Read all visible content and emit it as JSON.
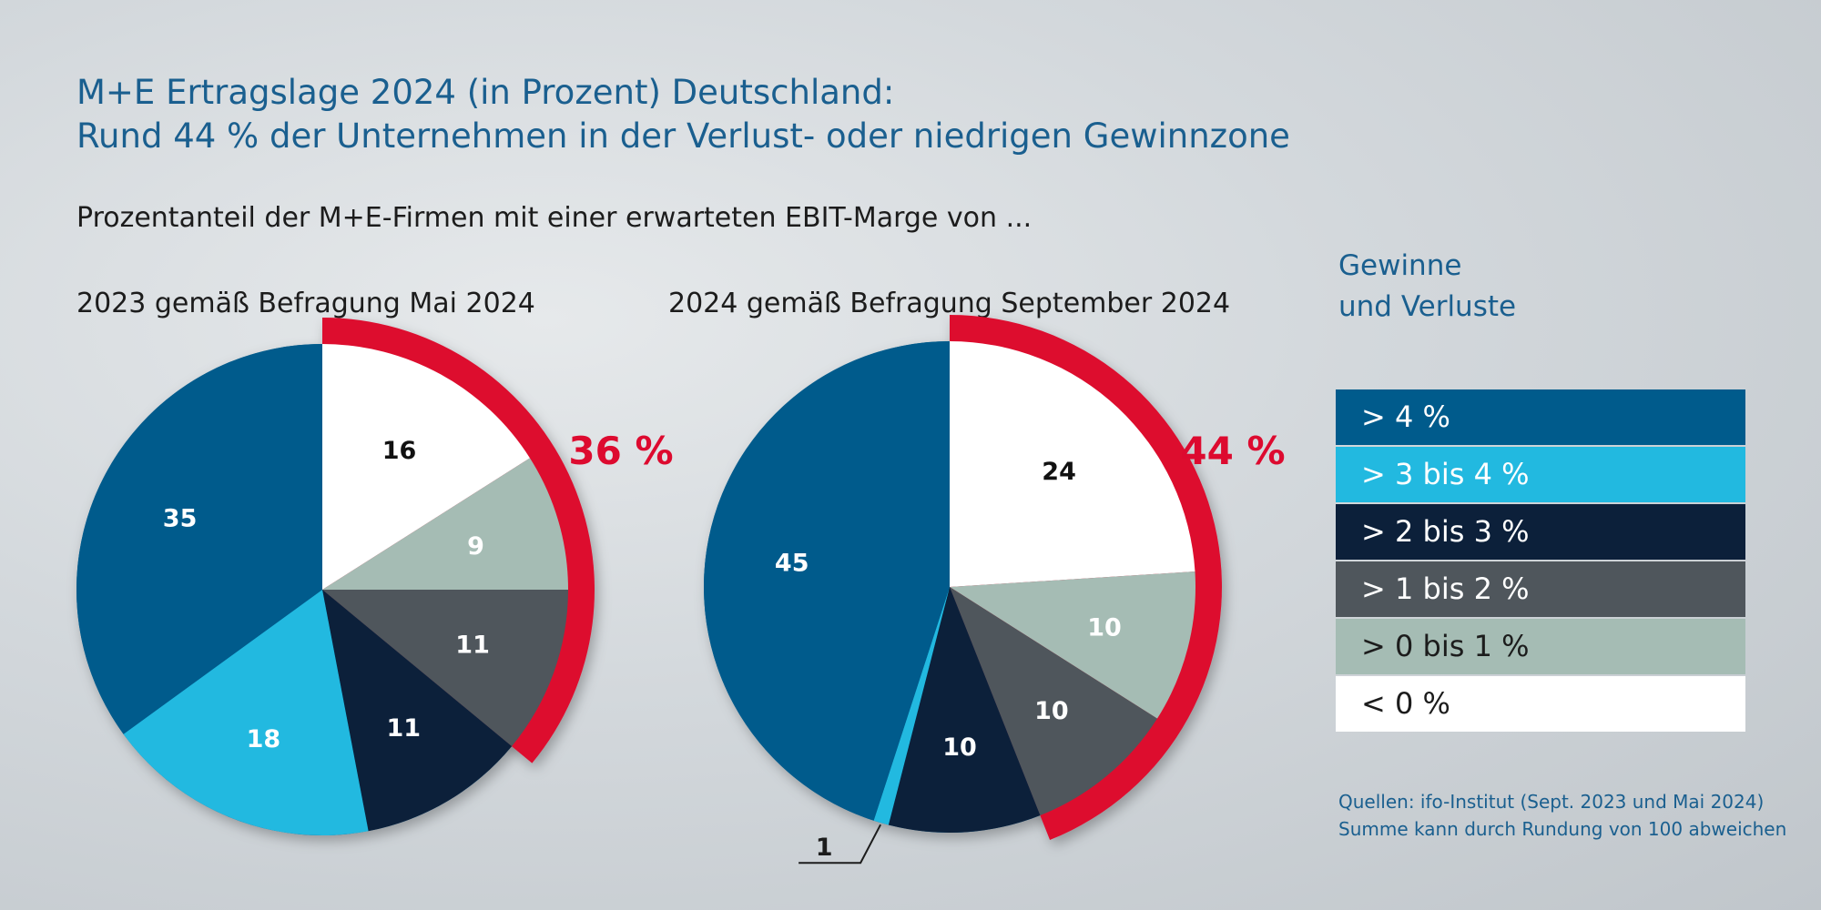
{
  "header": {
    "title_line1": "M+E Ertragslage 2024 (in Prozent) Deutschland:",
    "title_line2": "Rund 44 % der Unternehmen in der Verlust- oder niedrigen Gewinnzone",
    "subtitle": "Prozentanteil der M+E-Firmen mit einer erwarteten EBIT-Marge von ..."
  },
  "colors": {
    "gt4": "#005b8c",
    "3to4": "#22b9e0",
    "2to3": "#0c203a",
    "1to2": "#4f565c",
    "0to1": "#a5bcb4",
    "lt0": "#ffffff",
    "highlight": "#dd0a2f"
  },
  "legend": {
    "title_line1": "Gewinne",
    "title_line2": "und Verluste",
    "items": [
      {
        "label": "> 4 %",
        "color": "#005b8c",
        "text_color": "#ffffff"
      },
      {
        "label": "> 3 bis 4 %",
        "color": "#22b9e0",
        "text_color": "#ffffff"
      },
      {
        "label": "> 2 bis 3 %",
        "color": "#0c203a",
        "text_color": "#ffffff"
      },
      {
        "label": "> 1 bis 2 %",
        "color": "#4f565c",
        "text_color": "#ffffff"
      },
      {
        "label": "> 0 bis 1 %",
        "color": "#a5bcb4",
        "text_color": "#1c1c1c"
      },
      {
        "label": "< 0 %",
        "color": "#ffffff",
        "text_color": "#1c1c1c"
      }
    ]
  },
  "sources": {
    "line1": "Quellen: ifo-Institut (Sept. 2023 und Mai 2024)",
    "line2": "Summe kann durch Rundung von 100 abweichen"
  },
  "chart_data": [
    {
      "type": "pie",
      "title": "2023 gemäß Befragung Mai 2024",
      "categories": [
        "< 0 %",
        "> 0 bis 1 %",
        "> 1 bis 2 %",
        "> 2 bis 3 %",
        "> 3 bis 4 %",
        "> 4 %"
      ],
      "values": [
        16,
        9,
        11,
        11,
        18,
        35
      ],
      "value_labels": [
        "16",
        "9",
        "11",
        "11",
        "18",
        "35"
      ],
      "highlight_label": "36 %",
      "highlight_categories": [
        "< 0 %",
        "> 0 bis 1 %",
        "> 1 bis 2 %"
      ]
    },
    {
      "type": "pie",
      "title": "2024 gemäß Befragung September 2024",
      "categories": [
        "< 0 %",
        "> 0 bis 1 %",
        "> 1 bis 2 %",
        "> 2 bis 3 %",
        "> 3 bis 4 %",
        "> 4 %"
      ],
      "values": [
        24,
        10,
        10,
        10,
        1,
        45
      ],
      "value_labels": [
        "24",
        "10",
        "10",
        "10",
        "1",
        "45"
      ],
      "highlight_label": "44 %",
      "highlight_categories": [
        "< 0 %",
        "> 0 bis 1 %",
        "> 1 bis 2 %"
      ]
    }
  ]
}
